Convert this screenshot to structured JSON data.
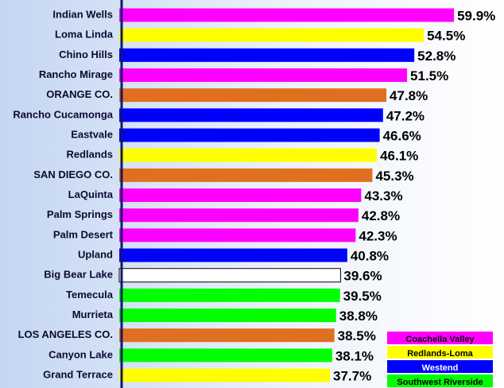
{
  "chart_data": {
    "type": "bar",
    "orientation": "horizontal",
    "categories": [
      "Indian Wells",
      "Loma Linda",
      "Chino Hills",
      "Rancho Mirage",
      "ORANGE CO.",
      "Rancho Cucamonga",
      "Eastvale",
      "Redlands",
      "SAN DIEGO CO.",
      "LaQuinta",
      "Palm Springs",
      "Palm Desert",
      "Upland",
      "Big Bear Lake",
      "Temecula",
      "Murrieta",
      "LOS ANGELES CO.",
      "Canyon Lake",
      "Grand Terrace"
    ],
    "values": [
      59.9,
      54.5,
      52.8,
      51.5,
      47.8,
      47.2,
      46.6,
      46.1,
      45.3,
      43.3,
      42.8,
      42.3,
      40.8,
      39.6,
      39.5,
      38.8,
      38.5,
      38.1,
      37.7
    ],
    "value_labels": [
      "59.9%",
      "54.5%",
      "52.8%",
      "51.5%",
      "47.8%",
      "47.2%",
      "46.6%",
      "46.1%",
      "45.3%",
      "43.3%",
      "42.8%",
      "42.3%",
      "40.8%",
      "39.6%",
      "39.5%",
      "38.8%",
      "38.5%",
      "38.1%",
      "37.7%"
    ],
    "colors": [
      "#ff00ff",
      "#ffff00",
      "#0000ff",
      "#ff00ff",
      "#e07020",
      "#0000ff",
      "#0000ff",
      "#ffff00",
      "#e07020",
      "#ff00ff",
      "#ff00ff",
      "#ff00ff",
      "#0000ff",
      "#ffffff",
      "#00ff00",
      "#00ff00",
      "#e07020",
      "#00ff00",
      "#ffff00"
    ],
    "xlim": [
      0,
      65
    ],
    "legend_position": "lower right",
    "legend": [
      {
        "name": "Coachella Valley",
        "color": "#ff00ff"
      },
      {
        "name": "Redlands-Loma",
        "color": "#ffff00"
      },
      {
        "name": "Westend",
        "color": "#0000ff"
      },
      {
        "name": "Southwest Riverside",
        "color": "#00ff00"
      }
    ]
  }
}
